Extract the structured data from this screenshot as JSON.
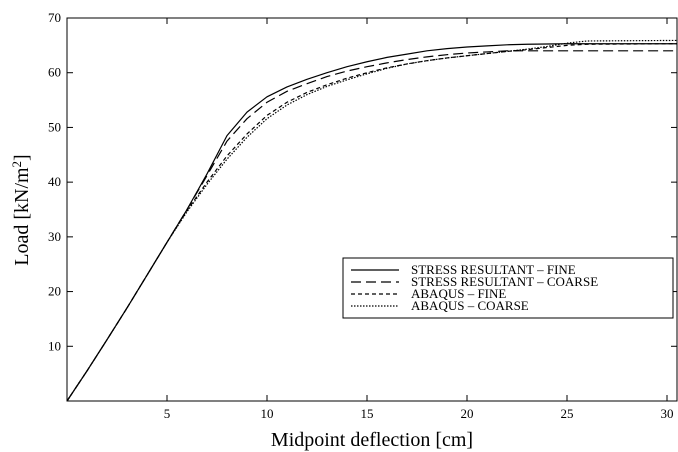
{
  "chart_data": {
    "type": "line",
    "xlabel": "Midpoint deflection [cm]",
    "ylabel": {
      "prefix": "Load [kN/m",
      "sup": "2",
      "suffix": "]"
    },
    "xlim": [
      0,
      30.5
    ],
    "ylim": [
      0,
      70
    ],
    "x_ticks": [
      5,
      10,
      15,
      20,
      25,
      30
    ],
    "y_ticks": [
      10,
      20,
      30,
      40,
      50,
      60,
      70
    ],
    "grid": false,
    "legend_position": "center-right",
    "series": [
      {
        "name": "STRESS RESULTANT – FINE",
        "dash": "solid",
        "points": [
          [
            0,
            0
          ],
          [
            1,
            5.5
          ],
          [
            2,
            11.2
          ],
          [
            3,
            17
          ],
          [
            4,
            23
          ],
          [
            5,
            29
          ],
          [
            6,
            35
          ],
          [
            7,
            41.5
          ],
          [
            8,
            48.5
          ],
          [
            9,
            52.8
          ],
          [
            10,
            55.6
          ],
          [
            11,
            57.4
          ],
          [
            12,
            58.8
          ],
          [
            13,
            60
          ],
          [
            14,
            61.1
          ],
          [
            15,
            62
          ],
          [
            16,
            62.8
          ],
          [
            17,
            63.4
          ],
          [
            18,
            64
          ],
          [
            19,
            64.4
          ],
          [
            20,
            64.7
          ],
          [
            21,
            64.9
          ],
          [
            22,
            65.1
          ],
          [
            23,
            65.2
          ],
          [
            24,
            65.25
          ],
          [
            25,
            65.3
          ],
          [
            30.5,
            65.3
          ]
        ]
      },
      {
        "name": "STRESS RESULTANT – COARSE",
        "dash": "long",
        "points": [
          [
            0,
            0
          ],
          [
            1,
            5.5
          ],
          [
            2,
            11.2
          ],
          [
            3,
            17
          ],
          [
            4,
            23
          ],
          [
            5,
            29
          ],
          [
            6,
            35
          ],
          [
            7,
            41.2
          ],
          [
            8,
            47.5
          ],
          [
            9,
            51.6
          ],
          [
            10,
            54.6
          ],
          [
            11,
            56.6
          ],
          [
            12,
            58
          ],
          [
            13,
            59.3
          ],
          [
            14,
            60.3
          ],
          [
            15,
            61.1
          ],
          [
            16,
            61.8
          ],
          [
            17,
            62.4
          ],
          [
            18,
            62.9
          ],
          [
            19,
            63.3
          ],
          [
            20,
            63.6
          ],
          [
            21,
            63.8
          ],
          [
            22,
            64
          ],
          [
            23,
            64
          ],
          [
            24,
            64
          ],
          [
            25,
            64
          ],
          [
            30.5,
            64
          ]
        ]
      },
      {
        "name": "ABAQUS – FINE",
        "dash": "short",
        "points": [
          [
            0,
            0
          ],
          [
            1,
            5.5
          ],
          [
            2,
            11.2
          ],
          [
            3,
            17
          ],
          [
            4,
            23
          ],
          [
            5,
            29
          ],
          [
            6,
            34.8
          ],
          [
            7,
            40
          ],
          [
            8,
            44.8
          ],
          [
            9,
            48.8
          ],
          [
            10,
            52.2
          ],
          [
            11,
            54.6
          ],
          [
            12,
            56.4
          ],
          [
            13,
            57.8
          ],
          [
            14,
            59
          ],
          [
            15,
            60
          ],
          [
            16,
            60.9
          ],
          [
            17,
            61.6
          ],
          [
            18,
            62.2
          ],
          [
            19,
            62.7
          ],
          [
            20,
            63.1
          ],
          [
            21,
            63.5
          ],
          [
            22,
            63.9
          ],
          [
            23,
            64.2
          ],
          [
            24,
            64.6
          ],
          [
            25,
            65
          ],
          [
            26,
            65.2
          ],
          [
            30.5,
            65.3
          ]
        ]
      },
      {
        "name": "ABAQUS – COARSE",
        "dash": "dotted",
        "points": [
          [
            0,
            0
          ],
          [
            1,
            5.5
          ],
          [
            2,
            11.2
          ],
          [
            3,
            17
          ],
          [
            4,
            23
          ],
          [
            5,
            29
          ],
          [
            6,
            34.6
          ],
          [
            7,
            39.6
          ],
          [
            8,
            44.2
          ],
          [
            9,
            48.2
          ],
          [
            10,
            51.6
          ],
          [
            11,
            54.1
          ],
          [
            12,
            56
          ],
          [
            13,
            57.5
          ],
          [
            14,
            58.7
          ],
          [
            15,
            59.8
          ],
          [
            16,
            60.8
          ],
          [
            17,
            61.6
          ],
          [
            18,
            62.2
          ],
          [
            19,
            62.7
          ],
          [
            20,
            63.1
          ],
          [
            21,
            63.5
          ],
          [
            22,
            63.9
          ],
          [
            23,
            64.3
          ],
          [
            24,
            64.8
          ],
          [
            25,
            65.4
          ],
          [
            26,
            65.8
          ],
          [
            30.5,
            65.9
          ]
        ]
      }
    ]
  }
}
